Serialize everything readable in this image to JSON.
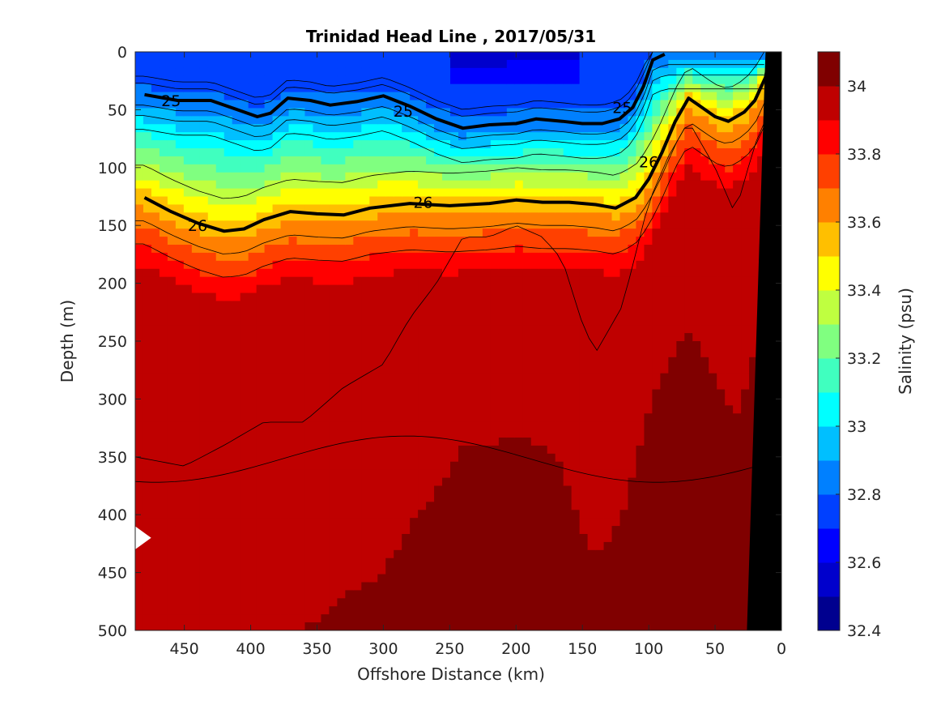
{
  "chart_data": {
    "type": "contour",
    "title": "Trinidad Head Line , 2017/05/31",
    "xlabel": "Offshore Distance (km)",
    "ylabel": "Depth (m)",
    "xlim": [
      487,
      0
    ],
    "ylim": [
      500,
      0
    ],
    "x_direction": "reversed",
    "y_direction": "reversed (depth increases downward)",
    "xticks": [
      "450",
      "400",
      "350",
      "300",
      "250",
      "200",
      "150",
      "100",
      "50",
      "0"
    ],
    "yticks": [
      "0",
      "50",
      "100",
      "150",
      "200",
      "250",
      "300",
      "350",
      "400",
      "450",
      "500"
    ],
    "colorbar": {
      "label": "Salinity (psu)",
      "range": [
        32.4,
        34.1
      ],
      "levels": [
        32.4,
        32.5,
        32.6,
        32.7,
        32.8,
        32.9,
        33.0,
        33.1,
        33.2,
        33.3,
        33.4,
        33.5,
        33.6,
        33.7,
        33.8,
        33.9,
        34.0,
        34.1
      ],
      "ticks": [
        "32.4",
        "32.6",
        "32.8",
        "33",
        "33.2",
        "33.4",
        "33.6",
        "33.8",
        "34"
      ],
      "colors": [
        "#00008f",
        "#0000cc",
        "#0000ff",
        "#0040ff",
        "#0080ff",
        "#00bfff",
        "#00ffff",
        "#40ffbf",
        "#80ff80",
        "#bfff40",
        "#ffff00",
        "#ffbf00",
        "#ff8000",
        "#ff4000",
        "#ff0000",
        "#bf0000",
        "#800000"
      ]
    },
    "density_contours": [
      {
        "label": "25",
        "points": [
          [
            480,
            37
          ],
          [
            455,
            42
          ],
          [
            430,
            42
          ],
          [
            410,
            50
          ],
          [
            395,
            56
          ],
          [
            385,
            53
          ],
          [
            372,
            40
          ],
          [
            355,
            42
          ],
          [
            340,
            46
          ],
          [
            320,
            43
          ],
          [
            300,
            38
          ],
          [
            280,
            47
          ],
          [
            260,
            58
          ],
          [
            240,
            66
          ],
          [
            220,
            63
          ],
          [
            200,
            62
          ],
          [
            185,
            58
          ],
          [
            165,
            60
          ],
          [
            150,
            62
          ],
          [
            135,
            62
          ],
          [
            122,
            58
          ],
          [
            112,
            48
          ],
          [
            104,
            30
          ],
          [
            97,
            7
          ],
          [
            88,
            2
          ]
        ]
      },
      {
        "label": "26",
        "points": [
          [
            480,
            126
          ],
          [
            460,
            138
          ],
          [
            440,
            148
          ],
          [
            420,
            155
          ],
          [
            405,
            153
          ],
          [
            390,
            145
          ],
          [
            370,
            138
          ],
          [
            350,
            140
          ],
          [
            330,
            141
          ],
          [
            310,
            135
          ],
          [
            280,
            131
          ],
          [
            250,
            133
          ],
          [
            220,
            131
          ],
          [
            200,
            128
          ],
          [
            180,
            130
          ],
          [
            160,
            130
          ],
          [
            140,
            132
          ],
          [
            125,
            135
          ],
          [
            110,
            126
          ],
          [
            100,
            110
          ],
          [
            90,
            87
          ],
          [
            80,
            60
          ],
          [
            70,
            40
          ],
          [
            60,
            48
          ],
          [
            50,
            56
          ],
          [
            40,
            60
          ],
          [
            28,
            52
          ],
          [
            20,
            42
          ],
          [
            12,
            22
          ],
          [
            10,
            10
          ]
        ]
      }
    ],
    "contour_labels": [
      {
        "text": "25",
        "x": 460,
        "y": 42
      },
      {
        "text": "25",
        "x": 285,
        "y": 51
      },
      {
        "text": "25",
        "x": 120,
        "y": 48
      },
      {
        "text": "26",
        "x": 440,
        "y": 150
      },
      {
        "text": "26",
        "x": 270,
        "y": 130
      },
      {
        "text": "26",
        "x": 100,
        "y": 95
      }
    ],
    "bathymetry": [
      [
        12,
        0
      ],
      [
        0,
        0
      ],
      [
        0,
        500
      ],
      [
        26,
        500
      ]
    ]
  }
}
